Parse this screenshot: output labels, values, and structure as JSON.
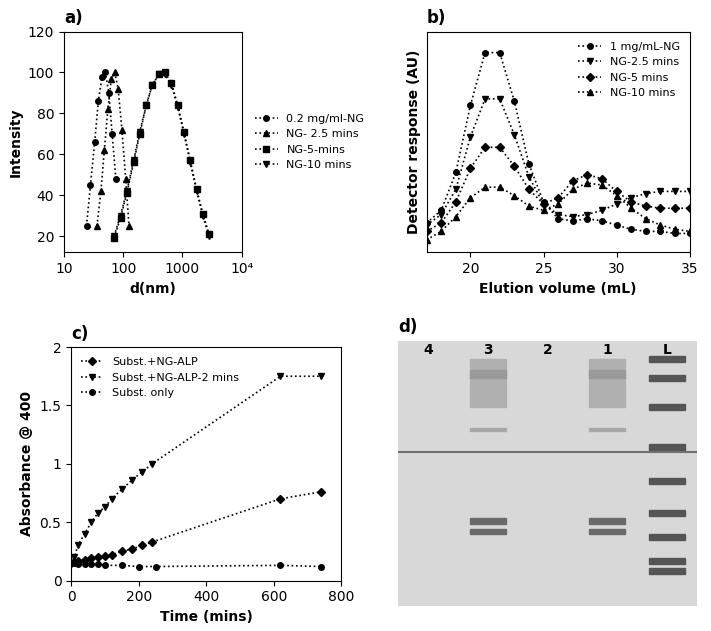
{
  "chart_data": [
    {
      "type": "line",
      "title": "a)",
      "x_label": "d(nm)",
      "y_label": "Intensity",
      "log": "x",
      "xlim": [
        10,
        10000
      ],
      "xticks": [
        10,
        100,
        1000,
        {
          "value": 10000,
          "label": "10⁴"
        }
      ],
      "ylim": [
        12,
        120
      ],
      "yticks": [
        20,
        40,
        60,
        80,
        100,
        120
      ],
      "legend": "center left",
      "series": [
        {
          "name": "0.2 mg/ml-NG",
          "color": "#000000",
          "marker": "o",
          "line_style": "dotted",
          "x": [
            24,
            28,
            33,
            38,
            44,
            50,
            57,
            65,
            75
          ],
          "values": [
            25,
            45,
            66,
            86,
            98,
            100,
            90,
            70,
            48
          ]
        },
        {
          "name": "NG- 2.5 mins",
          "color": "#000000",
          "marker": "^",
          "line_style": "dotted",
          "x": [
            36,
            42,
            48,
            55,
            63,
            72,
            82,
            95,
            110,
            125
          ],
          "values": [
            25,
            42,
            62,
            82,
            97,
            100,
            92,
            72,
            48,
            25
          ]
        },
        {
          "name": "NG-5-mins",
          "color": "#000000",
          "marker": "s",
          "line_style": "dotted",
          "x": [
            70,
            90,
            115,
            150,
            190,
            245,
            310,
            400,
            500,
            650,
            830,
            1060,
            1350,
            1730,
            2200,
            2800
          ],
          "values": [
            19,
            29,
            41,
            56,
            70,
            84,
            94,
            99,
            100,
            95,
            84,
            71,
            57,
            43,
            31,
            21
          ]
        },
        {
          "name": "NG-10 mins",
          "color": "#000000",
          "marker": "v",
          "line_style": "dotted",
          "x": [
            70,
            90,
            115,
            150,
            190,
            245,
            310,
            400,
            500,
            650,
            830,
            1060,
            1350,
            1730,
            2200,
            2800
          ],
          "values": [
            20,
            30,
            42,
            57,
            71,
            84,
            94,
            99,
            99,
            94,
            83,
            70,
            56,
            42,
            30,
            20
          ]
        }
      ]
    },
    {
      "type": "line",
      "title": "b)",
      "x_label": "Elution volume (mL)",
      "y_label": "Detector response (AU)",
      "xlim": [
        17,
        35
      ],
      "xticks": [
        20,
        25,
        30,
        35
      ],
      "ylim": [
        0,
        105
      ],
      "tick_labels": "x",
      "legend": "upper right",
      "x": [
        17,
        18,
        19,
        20,
        21,
        22,
        23,
        24,
        25,
        26,
        27,
        28,
        29,
        30,
        31,
        32,
        33,
        34,
        35
      ],
      "series": [
        {
          "name": "1 mg/mL-NG",
          "color": "#000000",
          "marker": "o",
          "line_style": "dotted",
          "values": [
            14,
            20,
            38,
            70,
            95,
            95,
            72,
            42,
            24,
            16,
            15,
            16,
            15,
            13,
            11,
            10,
            10,
            9,
            9
          ]
        },
        {
          "name": "NG-2.5 mins",
          "color": "#000000",
          "marker": "v",
          "line_style": "dotted",
          "values": [
            13,
            18,
            30,
            55,
            73,
            73,
            56,
            36,
            23,
            18,
            17,
            18,
            20,
            23,
            26,
            28,
            29,
            29,
            29
          ]
        },
        {
          "name": "NG-5 mins",
          "color": "#000000",
          "marker": "D",
          "line_style": "dotted",
          "values": [
            10,
            14,
            24,
            40,
            50,
            50,
            41,
            30,
            23,
            26,
            34,
            37,
            35,
            29,
            24,
            22,
            21,
            21,
            21
          ]
        },
        {
          "name": "NG-10 mins",
          "color": "#000000",
          "marker": "^",
          "line_style": "dotted",
          "values": [
            6,
            10,
            17,
            26,
            31,
            31,
            27,
            22,
            20,
            23,
            30,
            33,
            32,
            27,
            21,
            16,
            13,
            11,
            10
          ]
        }
      ]
    },
    {
      "type": "line",
      "title": "c)",
      "x_label": "Time (mins)",
      "y_label": "Absorbance @ 400",
      "xlim": [
        0,
        800
      ],
      "xticks": [
        0,
        200,
        400,
        600,
        800
      ],
      "ylim": [
        0,
        2
      ],
      "yticks": [
        0,
        0.5,
        1,
        1.5,
        2
      ],
      "legend": "upper left",
      "series": [
        {
          "name": "Subst.+NG-ALP",
          "color": "#000000",
          "marker": "D",
          "line_style": "dotted",
          "x": [
            0,
            10,
            20,
            40,
            60,
            80,
            100,
            120,
            150,
            180,
            210,
            240,
            620,
            740
          ],
          "values": [
            0.15,
            0.16,
            0.17,
            0.18,
            0.19,
            0.2,
            0.21,
            0.22,
            0.25,
            0.27,
            0.3,
            0.33,
            0.7,
            0.76
          ]
        },
        {
          "name": "Subst.+NG-ALP-2 mins",
          "color": "#000000",
          "marker": "v",
          "line_style": "dotted",
          "x": [
            0,
            10,
            20,
            40,
            60,
            80,
            100,
            120,
            150,
            180,
            210,
            240,
            620,
            740
          ],
          "values": [
            0.15,
            0.2,
            0.3,
            0.4,
            0.5,
            0.58,
            0.63,
            0.7,
            0.78,
            0.86,
            0.93,
            1.0,
            1.75,
            1.75
          ]
        },
        {
          "name": "Subst. only",
          "color": "#000000",
          "marker": "o",
          "line_style": "dotted",
          "x": [
            0,
            10,
            20,
            40,
            60,
            80,
            100,
            150,
            200,
            250,
            620,
            740
          ],
          "values": [
            0.15,
            0.15,
            0.14,
            0.14,
            0.14,
            0.14,
            0.13,
            0.13,
            0.12,
            0.12,
            0.13,
            0.12
          ]
        }
      ]
    },
    {
      "type": "gel",
      "title": "d)",
      "categories": [
        "4",
        "3",
        "2",
        "1",
        "L"
      ],
      "tick_labels": false
    }
  ]
}
